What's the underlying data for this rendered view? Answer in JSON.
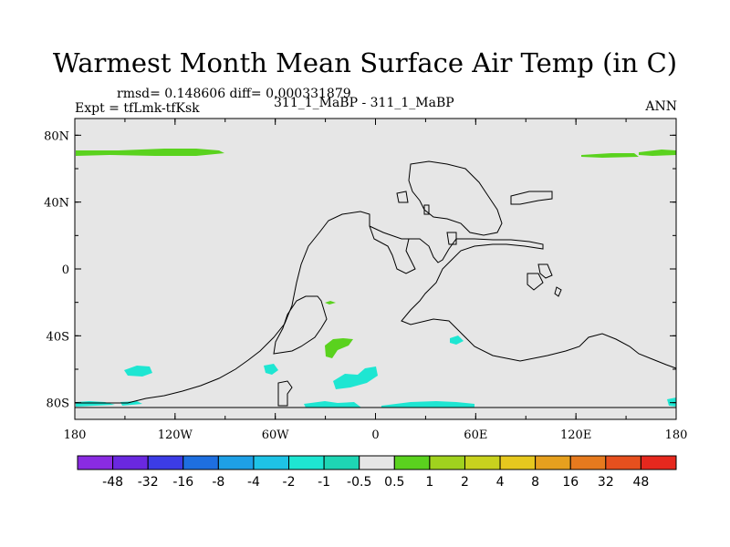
{
  "title": "Warmest Month Mean Surface Air Temp (in C)",
  "stats": "rmsd= 0.148606  diff= 0.000331879",
  "expt": "Expt = tfLmk-tfKsk",
  "case": "311_1_MaBP - 311_1_MaBP",
  "season": "ANN",
  "y_ticks": [
    "80N",
    "40N",
    "0",
    "40S",
    "80S"
  ],
  "x_ticks": [
    "180",
    "120W",
    "60W",
    "0",
    "60E",
    "120E",
    "180"
  ],
  "colorbar": {
    "colors": [
      "#8a2be2",
      "#6a28e0",
      "#3c3ce6",
      "#1e6fe0",
      "#1ea0e6",
      "#1ec3e6",
      "#1ee6d2",
      "#1ed6b4",
      "#e6e6e6",
      "#5ad21e",
      "#a0d21e",
      "#c8d21e",
      "#e6c81e",
      "#e6a01e",
      "#e67a1e",
      "#e6501e",
      "#e6281e"
    ],
    "labels": [
      "-48",
      "-32",
      "-16",
      "-8",
      "-4",
      "-2",
      "-1",
      "-0.5",
      "0.5",
      "1",
      "2",
      "4",
      "8",
      "16",
      "32",
      "48"
    ]
  },
  "colors": {
    "background_field": "#e6e6e6",
    "positive_patch": "#5ad21e",
    "negative_patch": "#1ee6d2"
  }
}
